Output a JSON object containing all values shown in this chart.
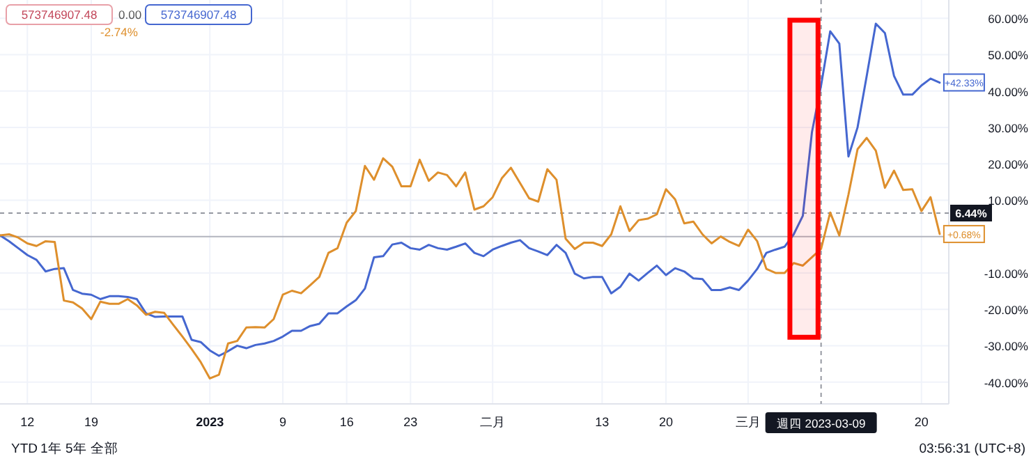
{
  "chart_data": {
    "type": "line",
    "x": [
      "2022-12-09",
      "2022-12-10",
      "2022-12-11",
      "2022-12-12",
      "2022-12-13",
      "2022-12-14",
      "2022-12-15",
      "2022-12-16",
      "2022-12-17",
      "2022-12-18",
      "2022-12-19",
      "2022-12-20",
      "2022-12-21",
      "2022-12-22",
      "2022-12-23",
      "2022-12-24",
      "2022-12-25",
      "2022-12-26",
      "2022-12-27",
      "2022-12-28",
      "2022-12-29",
      "2022-12-30",
      "2022-12-31",
      "2023-01-01",
      "2023-01-02",
      "2023-01-03",
      "2023-01-04",
      "2023-01-05",
      "2023-01-06",
      "2023-01-07",
      "2023-01-08",
      "2023-01-09",
      "2023-01-10",
      "2023-01-11",
      "2023-01-12",
      "2023-01-13",
      "2023-01-14",
      "2023-01-15",
      "2023-01-16",
      "2023-01-17",
      "2023-01-18",
      "2023-01-19",
      "2023-01-20",
      "2023-01-21",
      "2023-01-22",
      "2023-01-23",
      "2023-01-24",
      "2023-01-25",
      "2023-01-26",
      "2023-01-27",
      "2023-01-28",
      "2023-01-29",
      "2023-01-30",
      "2023-01-31",
      "2023-02-01",
      "2023-02-02",
      "2023-02-03",
      "2023-02-04",
      "2023-02-05",
      "2023-02-06",
      "2023-02-07",
      "2023-02-08",
      "2023-02-09",
      "2023-02-10",
      "2023-02-11",
      "2023-02-12",
      "2023-02-13",
      "2023-02-14",
      "2023-02-15",
      "2023-02-16",
      "2023-02-17",
      "2023-02-18",
      "2023-02-19",
      "2023-02-20",
      "2023-02-21",
      "2023-02-22",
      "2023-02-23",
      "2023-02-24",
      "2023-02-25",
      "2023-02-26",
      "2023-02-27",
      "2023-02-28",
      "2023-03-01",
      "2023-03-02",
      "2023-03-03",
      "2023-03-04",
      "2023-03-05",
      "2023-03-06",
      "2023-03-07",
      "2023-03-08",
      "2023-03-09",
      "2023-03-10",
      "2023-03-11",
      "2023-03-12",
      "2023-03-13",
      "2023-03-14",
      "2023-03-15",
      "2023-03-16",
      "2023-03-17",
      "2023-03-18",
      "2023-03-19",
      "2023-03-20",
      "2023-03-21",
      "2023-03-22"
    ],
    "series": [
      {
        "color": "#4567d0",
        "values": [
          0.3,
          -1.3,
          -3.2,
          -5.1,
          -6.4,
          -9.6,
          -8.9,
          -8.7,
          -14.7,
          -15.7,
          -16.0,
          -17.2,
          -16.4,
          -16.4,
          -16.6,
          -17.2,
          -21.1,
          -22.1,
          -22.0,
          -22.0,
          -22.0,
          -28.4,
          -29.0,
          -31.3,
          -32.8,
          -31.5,
          -30.0,
          -30.7,
          -29.8,
          -29.4,
          -28.7,
          -27.5,
          -25.9,
          -25.9,
          -24.6,
          -24.0,
          -21.1,
          -21.1,
          -19.2,
          -17.5,
          -14.3,
          -5.7,
          -5.4,
          -2.2,
          -1.7,
          -3.2,
          -3.6,
          -2.3,
          -3.2,
          -3.6,
          -2.8,
          -1.9,
          -4.5,
          -5.4,
          -3.6,
          -2.6,
          -1.7,
          -1.0,
          -3.2,
          -4.1,
          -5.1,
          -2.3,
          -4.5,
          -10.2,
          -11.5,
          -11.1,
          -11.1,
          -15.6,
          -13.8,
          -10.2,
          -12.1,
          -10.0,
          -8.0,
          -10.6,
          -8.7,
          -9.6,
          -11.5,
          -11.7,
          -14.7,
          -14.7,
          -14.0,
          -14.7,
          -12.1,
          -8.9,
          -4.5,
          -3.6,
          -2.8,
          0.6,
          5.7,
          28.7,
          41.5,
          56.4,
          53.0,
          22.0,
          30.0,
          44.1,
          58.5,
          55.9,
          44.1,
          39.0,
          39.0,
          41.5,
          43.4,
          42.3
        ]
      },
      {
        "color": "#de8f2c",
        "values": [
          0.3,
          0.6,
          -0.3,
          -1.9,
          -2.6,
          -1.3,
          -1.5,
          -17.6,
          -18.1,
          -19.8,
          -22.7,
          -17.9,
          -18.5,
          -18.5,
          -17.2,
          -18.9,
          -21.5,
          -20.7,
          -21.0,
          -24.3,
          -27.5,
          -30.9,
          -34.5,
          -39.0,
          -38.0,
          -29.4,
          -28.7,
          -25.0,
          -24.9,
          -25.0,
          -22.7,
          -16.0,
          -14.9,
          -15.6,
          -13.4,
          -11.1,
          -4.5,
          -3.2,
          3.8,
          7.0,
          19.4,
          15.6,
          21.5,
          19.2,
          13.8,
          13.8,
          21.1,
          15.3,
          17.6,
          16.9,
          13.8,
          17.6,
          7.4,
          8.3,
          10.8,
          16.0,
          18.9,
          14.7,
          10.5,
          9.6,
          18.5,
          15.6,
          -0.6,
          -3.4,
          -1.7,
          -1.7,
          -2.6,
          0.6,
          8.3,
          1.5,
          4.5,
          4.9,
          6.1,
          13.0,
          10.2,
          3.6,
          4.1,
          0.6,
          -1.9,
          0,
          -1.5,
          -2.6,
          1.9,
          -1.3,
          -8.9,
          -10.0,
          -10.0,
          -7.3,
          -8.0,
          -5.7,
          -3.4,
          6.6,
          0.3,
          11.5,
          24.0,
          27.1,
          23.6,
          13.4,
          18.1,
          12.8,
          13.0,
          7.0,
          10.8,
          0.7
        ]
      }
    ],
    "xlim": [
      "2022-12-09",
      "2023-03-23"
    ],
    "xticks": [
      {
        "value": "2022-12-12",
        "label": "12"
      },
      {
        "value": "2022-12-19",
        "label": "19"
      },
      {
        "value": "2023-01-01",
        "label": "2023"
      },
      {
        "value": "2023-01-09",
        "label": "9"
      },
      {
        "value": "2023-01-16",
        "label": "16"
      },
      {
        "value": "2023-01-23",
        "label": "23"
      },
      {
        "value": "2023-02-01",
        "label": "二月"
      },
      {
        "value": "2023-02-13",
        "label": "13"
      },
      {
        "value": "2023-02-20",
        "label": "20"
      },
      {
        "value": "2023-03-01",
        "label": "三月"
      },
      {
        "value": "2023-03-20",
        "label": "20"
      }
    ],
    "ylim": [
      -46,
      65
    ],
    "yticks": [
      {
        "value": 60,
        "label": "60.00%"
      },
      {
        "value": 50,
        "label": "50.00%"
      },
      {
        "value": 40,
        "label": "40.00%"
      },
      {
        "value": 30,
        "label": "30.00%"
      },
      {
        "value": 20,
        "label": "20.00%"
      },
      {
        "value": 10,
        "label": "10.00%"
      },
      {
        "value": -10,
        "label": "-10.00%"
      },
      {
        "value": -20,
        "label": "-20.00%"
      },
      {
        "value": -30,
        "label": "-30.00%"
      },
      {
        "value": -40,
        "label": "-40.00%"
      }
    ],
    "grid": true,
    "ref_lines": [
      {
        "axis": "y",
        "value": 0,
        "color": "#b2b5be",
        "line_style": "solid"
      },
      {
        "axis": "y",
        "value": 6.44,
        "label": "6.44%",
        "color": "#9598a1",
        "line_style": "dashed"
      },
      {
        "axis": "x",
        "value": "2023-03-09",
        "label": "週四 2023-03-09",
        "color": "#9598a1",
        "line_style": "dashed"
      }
    ],
    "bands": [
      {
        "axis": "x",
        "from": "2023-03-05T14:00",
        "to": "2023-03-08T16:00",
        "color": "#ff0000"
      }
    ],
    "annotations": [
      "573746907.48",
      "0.00",
      "573746907.48",
      "-2.74%",
      "YTD",
      "1年",
      "5年",
      "全部",
      "03:56:31 (UTC+8)",
      {
        "text": "+42.33%",
        "x": "2023-03-22",
        "y": 42.33
      },
      {
        "text": "+0.68%",
        "x": "2023-03-22",
        "y": 0.68
      }
    ]
  }
}
